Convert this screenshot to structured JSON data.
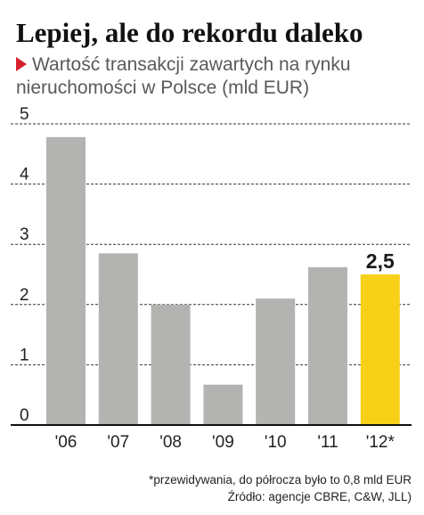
{
  "header": {
    "title": "Lepiej, ale do rekordu daleko",
    "subtitle": "Wartość transakcji zawartych na rynku nieruchomości w Polsce (mld EUR)"
  },
  "chart_data": {
    "type": "bar",
    "categories": [
      "'06",
      "'07",
      "'08",
      "'09",
      "'10",
      "'11",
      "'12*"
    ],
    "values": [
      4.78,
      2.85,
      2.0,
      0.67,
      2.1,
      2.62,
      2.5
    ],
    "ylim": [
      0,
      5
    ],
    "yticks": [
      "0",
      "1",
      "2",
      "3",
      "4",
      "5"
    ],
    "data_labels": [
      {
        "index": 6,
        "text": "2,5"
      }
    ],
    "grid": true,
    "bar_color": "#b3b3b1",
    "highlight_color": "#f7d117",
    "highlight_index": 6
  },
  "footnote": {
    "note": "*przewidywania, do półrocza było to 0,8 mld EUR",
    "source": "Źródło: agencje CBRE, C&W, JLL)"
  }
}
